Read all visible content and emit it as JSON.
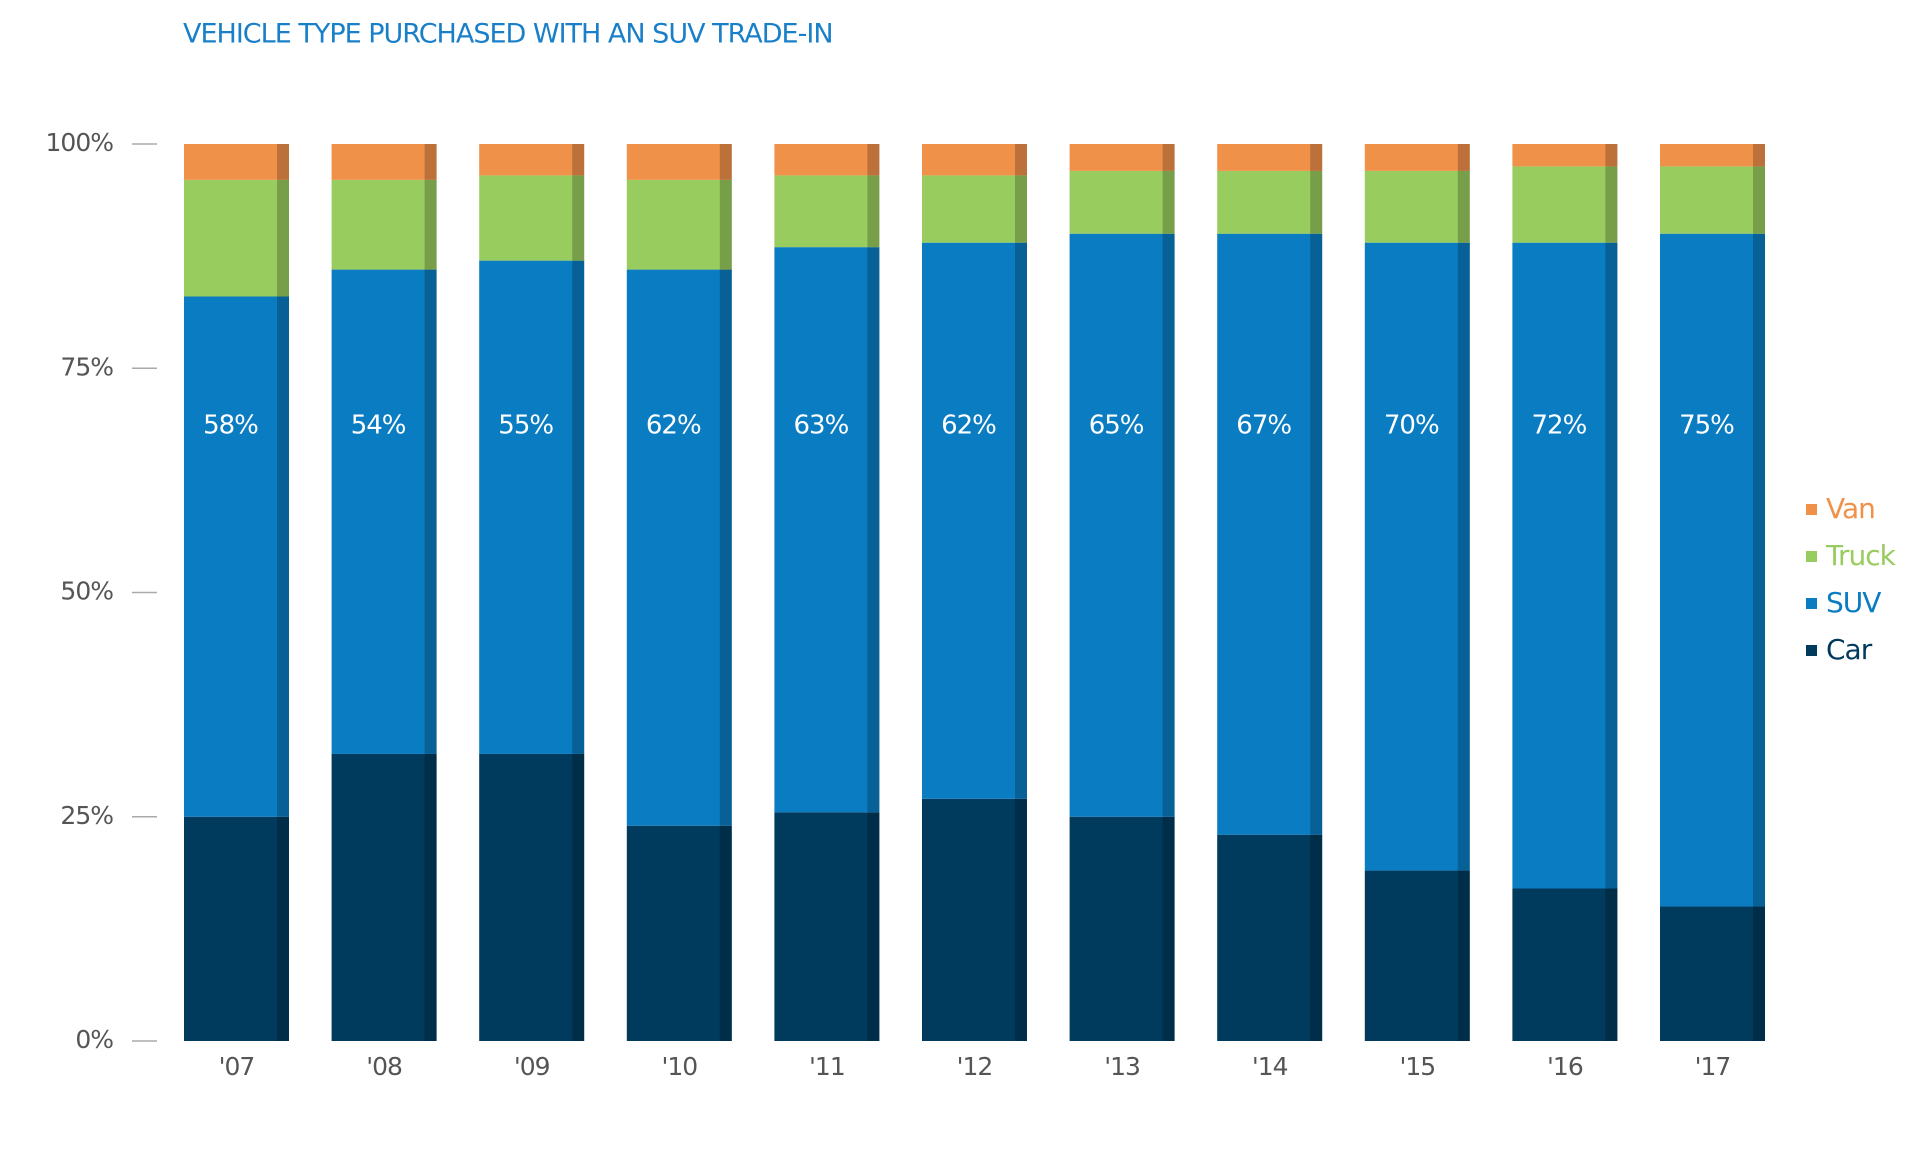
{
  "chart_data": {
    "type": "stacked_bar",
    "title": "VEHICLE TYPE PURCHASED WITH AN SUV TRADE-IN",
    "categories": [
      "'07",
      "'08",
      "'09",
      "'10",
      "'11",
      "'12",
      "'13",
      "'14",
      "'15",
      "'16",
      "'17"
    ],
    "series": [
      {
        "name": "Car",
        "color": "#003a5c",
        "values": [
          25,
          32,
          32,
          24,
          25.5,
          27,
          25,
          23,
          19,
          17,
          15
        ]
      },
      {
        "name": "SUV",
        "color": "#0a7cc1",
        "values": [
          58,
          54,
          55,
          62,
          63,
          62,
          65,
          67,
          70,
          72,
          75
        ],
        "value_labels": [
          "58%",
          "54%",
          "55%",
          "62%",
          "63%",
          "62%",
          "65%",
          "67%",
          "70%",
          "72%",
          "75%"
        ]
      },
      {
        "name": "Truck",
        "color": "#99cc5e",
        "values": [
          13,
          10,
          9.5,
          10,
          8,
          7.5,
          7,
          7,
          8,
          8.5,
          7.5
        ]
      },
      {
        "name": "Van",
        "color": "#f0914a",
        "values": [
          4,
          4,
          3.5,
          4,
          3.5,
          3.5,
          3,
          3,
          3,
          2.5,
          2.5
        ]
      }
    ],
    "ylim": [
      0,
      100
    ],
    "yticks": [
      {
        "value": 0,
        "label": "0%"
      },
      {
        "value": 25,
        "label": "25%"
      },
      {
        "value": 50,
        "label": "50%"
      },
      {
        "value": 75,
        "label": "75%"
      },
      {
        "value": 100,
        "label": "100%"
      }
    ],
    "legend": "right"
  }
}
